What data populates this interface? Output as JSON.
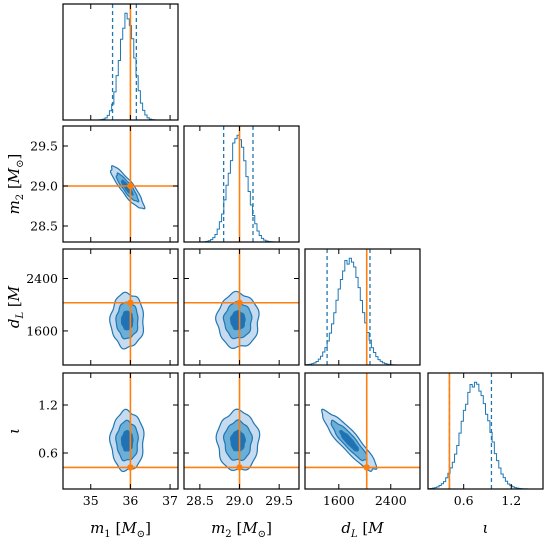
{
  "chart_data": {
    "type": "corner",
    "parameters": [
      {
        "key": "m1",
        "range": [
          34.3,
          37.2
        ],
        "ticks": [
          35,
          36,
          37
        ],
        "tick_labels": [
          "35",
          "36",
          "37"
        ],
        "truth": 36.0,
        "quantiles": [
          35.55,
          36.15
        ],
        "mode": 35.92,
        "sd": 0.19
      },
      {
        "key": "m2",
        "range": [
          28.3,
          29.75
        ],
        "ticks": [
          28.5,
          29.0,
          29.5
        ],
        "tick_labels": [
          "28.5",
          "29.0",
          "29.5"
        ],
        "truth": 29.0,
        "quantiles": [
          28.8,
          29.17
        ],
        "mode": 28.98,
        "sd": 0.12
      },
      {
        "key": "dL",
        "range": [
          1080,
          2850
        ],
        "ticks": [
          1600,
          2400
        ],
        "tick_labels": [
          "1600",
          "2400"
        ],
        "truth": 2030,
        "quantiles": [
          1420,
          2080
        ],
        "mode": 1760,
        "sd": 190
      },
      {
        "key": "iota",
        "range": [
          0.15,
          1.6
        ],
        "ticks": [
          0.6,
          1.2
        ],
        "tick_labels": [
          "0.6",
          "1.2"
        ],
        "truth": 0.42,
        "quantiles": [
          0.42,
          0.95
        ],
        "mode": 0.75,
        "sd": 0.17
      }
    ],
    "x_labels": [
      {
        "sym": "m",
        "sub": "1",
        "unit": "[M",
        "usub": "⊙",
        "close": "]"
      },
      {
        "sym": "m",
        "sub": "2",
        "unit": "[M",
        "usub": "⊙",
        "close": "]"
      },
      {
        "sym": "d",
        "sub": "L",
        "unit": "[Mpc]",
        "usub": "",
        "close": ""
      },
      {
        "sym": "ι",
        "sub": "",
        "unit": "",
        "usub": "",
        "close": ""
      }
    ],
    "y_labels": [
      {
        "row": 1,
        "sym": "m",
        "sub": "2",
        "unit": "[M",
        "usub": "⊙",
        "close": "]"
      },
      {
        "row": 2,
        "sym": "d",
        "sub": "L",
        "unit": "[Mpc]",
        "usub": "",
        "close": ""
      },
      {
        "row": 3,
        "sym": "ι",
        "sub": "",
        "unit": "",
        "usub": "",
        "close": ""
      }
    ],
    "correlations": {
      "1,0": -0.88,
      "2,0": 0.0,
      "2,1": 0.0,
      "3,0": 0.0,
      "3,1": 0.0,
      "3,2": -0.9
    },
    "colors": {
      "posterior": "#1f77b4",
      "truth": "#ff7f0e",
      "fill_levels": [
        "#c6dbef",
        "#6baed6",
        "#2171b5"
      ]
    },
    "grid": false
  }
}
